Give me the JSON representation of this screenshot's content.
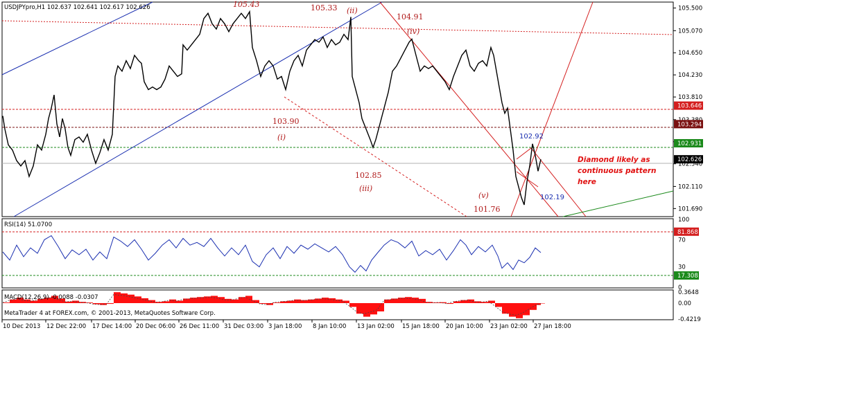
{
  "window": {
    "symbol_header": "USDJPYpro,H1  102.637 102.641 102.617 102.626",
    "copyright": "MetaTrader 4 at FOREX.com, © 2001-2013, MetaQuotes Software Corp."
  },
  "chart_data": [
    {
      "type": "line",
      "title": "USDJPYpro,H1  102.637 102.641 102.617 102.626",
      "ylim": [
        101.55,
        105.6
      ],
      "y_ticks": [
        "105.500",
        "105.070",
        "104.650",
        "104.230",
        "103.810",
        "103.380",
        "102.960",
        "102.540",
        "102.110",
        "101.690"
      ],
      "x_ticks": [
        "10 Dec 2013",
        "12 Dec 22:00",
        "17 Dec 14:00",
        "20 Dec 06:00",
        "26 Dec 11:00",
        "31 Dec 03:00",
        "3 Jan 18:00",
        "8 Jan 10:00",
        "13 Jan 02:00",
        "15 Jan 18:00",
        "20 Jan 10:00",
        "23 Jan 02:00",
        "27 Jan 18:00"
      ],
      "price_series": [
        [
          0,
          103.45
        ],
        [
          3,
          103.2
        ],
        [
          8,
          102.9
        ],
        [
          14,
          102.8
        ],
        [
          20,
          102.6
        ],
        [
          26,
          102.5
        ],
        [
          32,
          102.6
        ],
        [
          38,
          102.3
        ],
        [
          44,
          102.5
        ],
        [
          50,
          102.9
        ],
        [
          56,
          102.8
        ],
        [
          62,
          103.1
        ],
        [
          66,
          103.4
        ],
        [
          70,
          103.6
        ],
        [
          74,
          103.85
        ],
        [
          78,
          103.3
        ],
        [
          82,
          103.05
        ],
        [
          86,
          103.4
        ],
        [
          90,
          103.2
        ],
        [
          94,
          102.85
        ],
        [
          98,
          102.7
        ],
        [
          104,
          103.0
        ],
        [
          110,
          103.05
        ],
        [
          116,
          102.95
        ],
        [
          122,
          103.1
        ],
        [
          128,
          102.8
        ],
        [
          134,
          102.55
        ],
        [
          140,
          102.75
        ],
        [
          146,
          103.0
        ],
        [
          152,
          102.8
        ],
        [
          158,
          103.1
        ],
        [
          162,
          104.2
        ],
        [
          166,
          104.4
        ],
        [
          172,
          104.3
        ],
        [
          178,
          104.5
        ],
        [
          184,
          104.35
        ],
        [
          190,
          104.6
        ],
        [
          196,
          104.5
        ],
        [
          200,
          104.45
        ],
        [
          204,
          104.1
        ],
        [
          210,
          103.95
        ],
        [
          216,
          104.0
        ],
        [
          222,
          103.95
        ],
        [
          228,
          104.0
        ],
        [
          234,
          104.15
        ],
        [
          240,
          104.4
        ],
        [
          246,
          104.3
        ],
        [
          252,
          104.2
        ],
        [
          258,
          104.25
        ],
        [
          260,
          104.8
        ],
        [
          266,
          104.7
        ],
        [
          272,
          104.8
        ],
        [
          278,
          104.9
        ],
        [
          284,
          105.0
        ],
        [
          290,
          105.3
        ],
        [
          296,
          105.4
        ],
        [
          302,
          105.2
        ],
        [
          308,
          105.1
        ],
        [
          314,
          105.3
        ],
        [
          320,
          105.2
        ],
        [
          326,
          105.05
        ],
        [
          332,
          105.2
        ],
        [
          338,
          105.3
        ],
        [
          344,
          105.4
        ],
        [
          350,
          105.3
        ],
        [
          356,
          105.43
        ],
        [
          360,
          104.75
        ],
        [
          366,
          104.5
        ],
        [
          372,
          104.2
        ],
        [
          378,
          104.4
        ],
        [
          384,
          104.5
        ],
        [
          390,
          104.4
        ],
        [
          396,
          104.15
        ],
        [
          402,
          104.2
        ],
        [
          408,
          103.95
        ],
        [
          414,
          104.3
        ],
        [
          420,
          104.5
        ],
        [
          426,
          104.6
        ],
        [
          432,
          104.4
        ],
        [
          438,
          104.7
        ],
        [
          444,
          104.8
        ],
        [
          450,
          104.9
        ],
        [
          456,
          104.85
        ],
        [
          462,
          104.95
        ],
        [
          468,
          104.75
        ],
        [
          474,
          104.9
        ],
        [
          480,
          104.8
        ],
        [
          486,
          104.85
        ],
        [
          492,
          105.0
        ],
        [
          498,
          104.9
        ],
        [
          502,
          105.33
        ],
        [
          504,
          104.2
        ],
        [
          508,
          104.0
        ],
        [
          514,
          103.7
        ],
        [
          518,
          103.4
        ],
        [
          524,
          103.2
        ],
        [
          530,
          103.0
        ],
        [
          534,
          102.85
        ],
        [
          538,
          103.0
        ],
        [
          544,
          103.3
        ],
        [
          550,
          103.6
        ],
        [
          556,
          103.9
        ],
        [
          562,
          104.3
        ],
        [
          568,
          104.4
        ],
        [
          574,
          104.55
        ],
        [
          580,
          104.7
        ],
        [
          586,
          104.85
        ],
        [
          590,
          104.91
        ],
        [
          596,
          104.6
        ],
        [
          602,
          104.3
        ],
        [
          608,
          104.4
        ],
        [
          614,
          104.35
        ],
        [
          620,
          104.4
        ],
        [
          626,
          104.3
        ],
        [
          632,
          104.2
        ],
        [
          638,
          104.1
        ],
        [
          644,
          103.95
        ],
        [
          650,
          104.2
        ],
        [
          656,
          104.4
        ],
        [
          662,
          104.6
        ],
        [
          668,
          104.7
        ],
        [
          674,
          104.4
        ],
        [
          680,
          104.3
        ],
        [
          686,
          104.45
        ],
        [
          692,
          104.5
        ],
        [
          698,
          104.4
        ],
        [
          704,
          104.75
        ],
        [
          708,
          104.6
        ],
        [
          712,
          104.3
        ],
        [
          716,
          104.0
        ],
        [
          720,
          103.7
        ],
        [
          724,
          103.5
        ],
        [
          728,
          103.6
        ],
        [
          732,
          103.2
        ],
        [
          736,
          102.8
        ],
        [
          740,
          102.3
        ],
        [
          744,
          102.1
        ],
        [
          748,
          101.9
        ],
        [
          752,
          101.76
        ],
        [
          756,
          102.2
        ],
        [
          760,
          102.5
        ],
        [
          764,
          102.92
        ],
        [
          768,
          102.7
        ],
        [
          772,
          102.4
        ],
        [
          776,
          102.626
        ]
      ],
      "rsi": {
        "label": "RSI(14) 51.0700",
        "ylim": [
          0,
          100
        ],
        "y_ticks": [
          "100",
          "70",
          "30",
          "0"
        ],
        "levels": {
          "upper": 81.868,
          "lower": 17.308
        },
        "values": [
          [
            0,
            52
          ],
          [
            10,
            40
          ],
          [
            20,
            62
          ],
          [
            30,
            45
          ],
          [
            40,
            58
          ],
          [
            50,
            50
          ],
          [
            60,
            70
          ],
          [
            70,
            76
          ],
          [
            80,
            60
          ],
          [
            90,
            42
          ],
          [
            100,
            55
          ],
          [
            110,
            48
          ],
          [
            120,
            56
          ],
          [
            130,
            40
          ],
          [
            140,
            52
          ],
          [
            150,
            42
          ],
          [
            160,
            74
          ],
          [
            170,
            68
          ],
          [
            180,
            60
          ],
          [
            190,
            70
          ],
          [
            200,
            56
          ],
          [
            210,
            40
          ],
          [
            220,
            50
          ],
          [
            230,
            62
          ],
          [
            240,
            70
          ],
          [
            250,
            58
          ],
          [
            260,
            72
          ],
          [
            270,
            62
          ],
          [
            280,
            66
          ],
          [
            290,
            60
          ],
          [
            300,
            72
          ],
          [
            310,
            58
          ],
          [
            320,
            46
          ],
          [
            330,
            58
          ],
          [
            340,
            48
          ],
          [
            350,
            62
          ],
          [
            360,
            38
          ],
          [
            370,
            30
          ],
          [
            380,
            48
          ],
          [
            390,
            58
          ],
          [
            400,
            42
          ],
          [
            410,
            60
          ],
          [
            420,
            50
          ],
          [
            430,
            62
          ],
          [
            440,
            56
          ],
          [
            450,
            64
          ],
          [
            460,
            58
          ],
          [
            470,
            52
          ],
          [
            480,
            60
          ],
          [
            490,
            48
          ],
          [
            500,
            30
          ],
          [
            508,
            22
          ],
          [
            516,
            32
          ],
          [
            524,
            24
          ],
          [
            532,
            40
          ],
          [
            540,
            50
          ],
          [
            550,
            62
          ],
          [
            560,
            70
          ],
          [
            570,
            66
          ],
          [
            580,
            58
          ],
          [
            590,
            68
          ],
          [
            600,
            46
          ],
          [
            610,
            54
          ],
          [
            620,
            48
          ],
          [
            630,
            56
          ],
          [
            640,
            40
          ],
          [
            650,
            54
          ],
          [
            660,
            70
          ],
          [
            668,
            62
          ],
          [
            676,
            48
          ],
          [
            686,
            60
          ],
          [
            696,
            52
          ],
          [
            706,
            62
          ],
          [
            714,
            46
          ],
          [
            720,
            28
          ],
          [
            728,
            36
          ],
          [
            736,
            26
          ],
          [
            744,
            40
          ],
          [
            752,
            36
          ],
          [
            760,
            44
          ],
          [
            768,
            58
          ],
          [
            776,
            51
          ]
        ]
      },
      "macd": {
        "label": "MACD(12,26,9) -0.0088 -0.0307",
        "y_ticks": [
          "0.3648",
          "0.00",
          "-0.4219"
        ],
        "bars": [
          [
            0,
            0.02
          ],
          [
            10,
            0.12
          ],
          [
            20,
            0.18
          ],
          [
            30,
            0.12
          ],
          [
            40,
            0.08
          ],
          [
            50,
            0.14
          ],
          [
            60,
            0.18
          ],
          [
            70,
            0.24
          ],
          [
            80,
            0.15
          ],
          [
            90,
            0.05
          ],
          [
            100,
            0.08
          ],
          [
            110,
            0.04
          ],
          [
            120,
            0.02
          ],
          [
            130,
            -0.03
          ],
          [
            140,
            -0.05
          ],
          [
            150,
            -0.02
          ],
          [
            160,
            0.36
          ],
          [
            170,
            0.32
          ],
          [
            180,
            0.28
          ],
          [
            190,
            0.22
          ],
          [
            200,
            0.16
          ],
          [
            210,
            0.1
          ],
          [
            220,
            0.04
          ],
          [
            230,
            0.06
          ],
          [
            240,
            0.12
          ],
          [
            250,
            0.08
          ],
          [
            260,
            0.15
          ],
          [
            270,
            0.18
          ],
          [
            280,
            0.2
          ],
          [
            290,
            0.22
          ],
          [
            300,
            0.24
          ],
          [
            310,
            0.2
          ],
          [
            320,
            0.14
          ],
          [
            330,
            0.12
          ],
          [
            340,
            0.2
          ],
          [
            350,
            0.24
          ],
          [
            360,
            0.1
          ],
          [
            370,
            -0.02
          ],
          [
            380,
            -0.05
          ],
          [
            390,
            0.02
          ],
          [
            400,
            0.06
          ],
          [
            410,
            0.08
          ],
          [
            420,
            0.12
          ],
          [
            430,
            0.1
          ],
          [
            440,
            0.12
          ],
          [
            450,
            0.15
          ],
          [
            460,
            0.18
          ],
          [
            470,
            0.16
          ],
          [
            480,
            0.12
          ],
          [
            490,
            0.08
          ],
          [
            500,
            -0.1
          ],
          [
            510,
            -0.28
          ],
          [
            520,
            -0.36
          ],
          [
            530,
            -0.3
          ],
          [
            540,
            -0.22
          ],
          [
            550,
            0.12
          ],
          [
            560,
            0.15
          ],
          [
            570,
            0.18
          ],
          [
            580,
            0.2
          ],
          [
            590,
            0.18
          ],
          [
            600,
            0.14
          ],
          [
            610,
            0.04
          ],
          [
            620,
            0.02
          ],
          [
            630,
            0.03
          ],
          [
            640,
            -0.02
          ],
          [
            650,
            0.06
          ],
          [
            660,
            0.1
          ],
          [
            670,
            0.12
          ],
          [
            680,
            0.06
          ],
          [
            690,
            0.04
          ],
          [
            700,
            0.08
          ],
          [
            710,
            -0.1
          ],
          [
            720,
            -0.28
          ],
          [
            730,
            -0.36
          ],
          [
            740,
            -0.4
          ],
          [
            750,
            -0.32
          ],
          [
            760,
            -0.18
          ],
          [
            770,
            -0.05
          ],
          [
            776,
            -0.01
          ]
        ]
      }
    }
  ],
  "price_tags": [
    {
      "value": "102.931",
      "color": "#1b8a1b",
      "price": 102.931
    },
    {
      "value": "103.294",
      "color": "#7a1010",
      "price": 103.294
    },
    {
      "value": "103.646",
      "color": "#d41e1e",
      "price": 103.646
    },
    {
      "value": "102.626",
      "color": "#000000",
      "price": 102.626
    }
  ],
  "rsi_tags": [
    {
      "value": "81.868",
      "color": "#d41e1e"
    },
    {
      "value": "17.308",
      "color": "#1b8a1b"
    }
  ],
  "annotations": {
    "p_10543": "105.43",
    "p_10533": "105.33",
    "wave_ii": "(ii)",
    "p_10491": "104.91",
    "wave_iv": "(iv)",
    "p_10390": "103.90",
    "wave_i": "(i)",
    "p_10285": "102.85",
    "wave_iii": "(iii)",
    "wave_v": "(v)",
    "p_10176": "101.76",
    "p_10292": "102.92",
    "p_10219": "102.19",
    "note_line1": "Diamond likely as",
    "note_line2": "continuous pattern",
    "note_line3": "here"
  }
}
